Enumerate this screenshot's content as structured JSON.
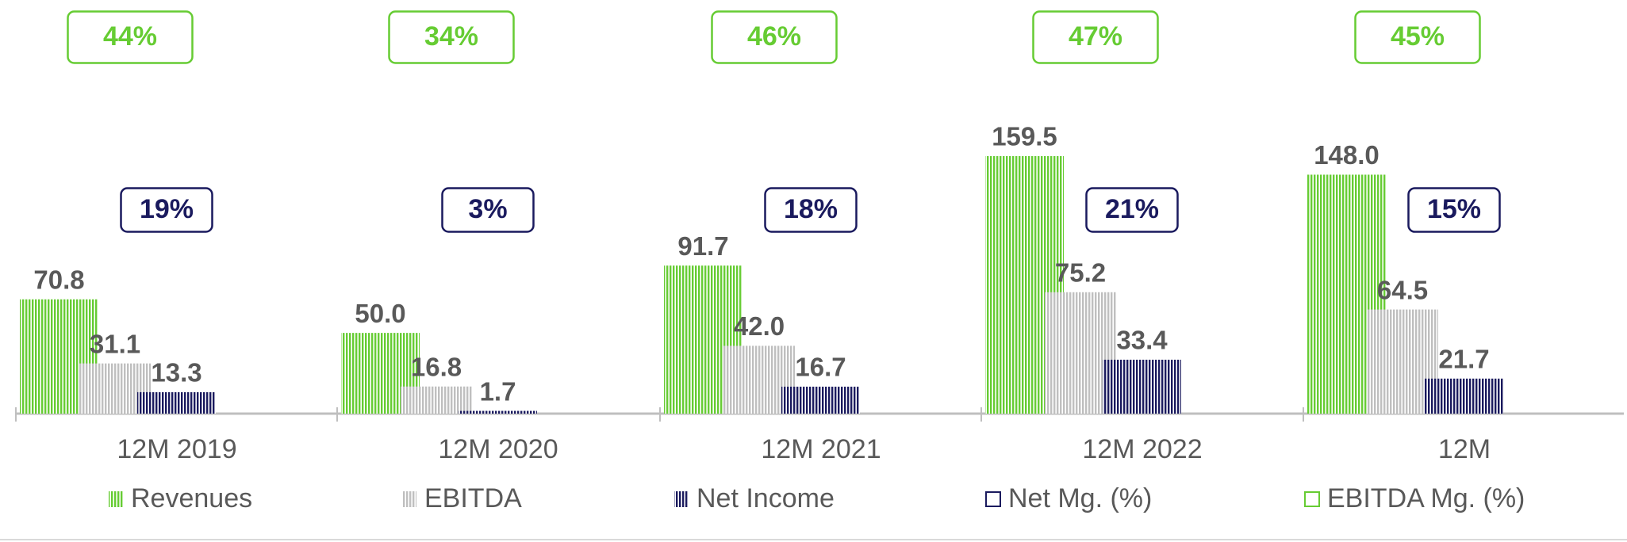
{
  "chart_data": {
    "type": "bar",
    "categories": [
      "12M 2019",
      "12M 2020",
      "12M 2021",
      "12M 2022",
      "12M"
    ],
    "ylim": [
      0,
      160
    ],
    "series": [
      {
        "name": "Revenues",
        "color": "#66cc33",
        "values": [
          70.8,
          50.0,
          91.7,
          159.5,
          148.0
        ],
        "value_labels": [
          "70.8",
          "50.0",
          "91.7",
          "159.5",
          "148.0"
        ]
      },
      {
        "name": "EBITDA",
        "color": "#bfbfbf",
        "values": [
          31.1,
          16.8,
          42.0,
          75.2,
          64.5
        ],
        "value_labels": [
          "31.1",
          "16.8",
          "42.0",
          "75.2",
          "64.5"
        ]
      },
      {
        "name": "Net Income",
        "color": "#1a1a5e",
        "values": [
          13.3,
          1.7,
          16.7,
          33.4,
          21.7
        ],
        "value_labels": [
          "13.3",
          "1.7",
          "16.7",
          "33.4",
          "21.7"
        ]
      }
    ],
    "margins": [
      {
        "name": "Net Mg. (%)",
        "color": "#1a1a5e",
        "values": [
          19,
          3,
          18,
          21,
          15
        ],
        "value_labels": [
          "19%",
          "3%",
          "18%",
          "21%",
          "15%"
        ]
      },
      {
        "name": "EBITDA Mg. (%)",
        "color": "#66cc33",
        "values": [
          44,
          34,
          46,
          47,
          45
        ],
        "value_labels": [
          "44%",
          "34%",
          "46%",
          "47%",
          "45%"
        ]
      }
    ]
  }
}
